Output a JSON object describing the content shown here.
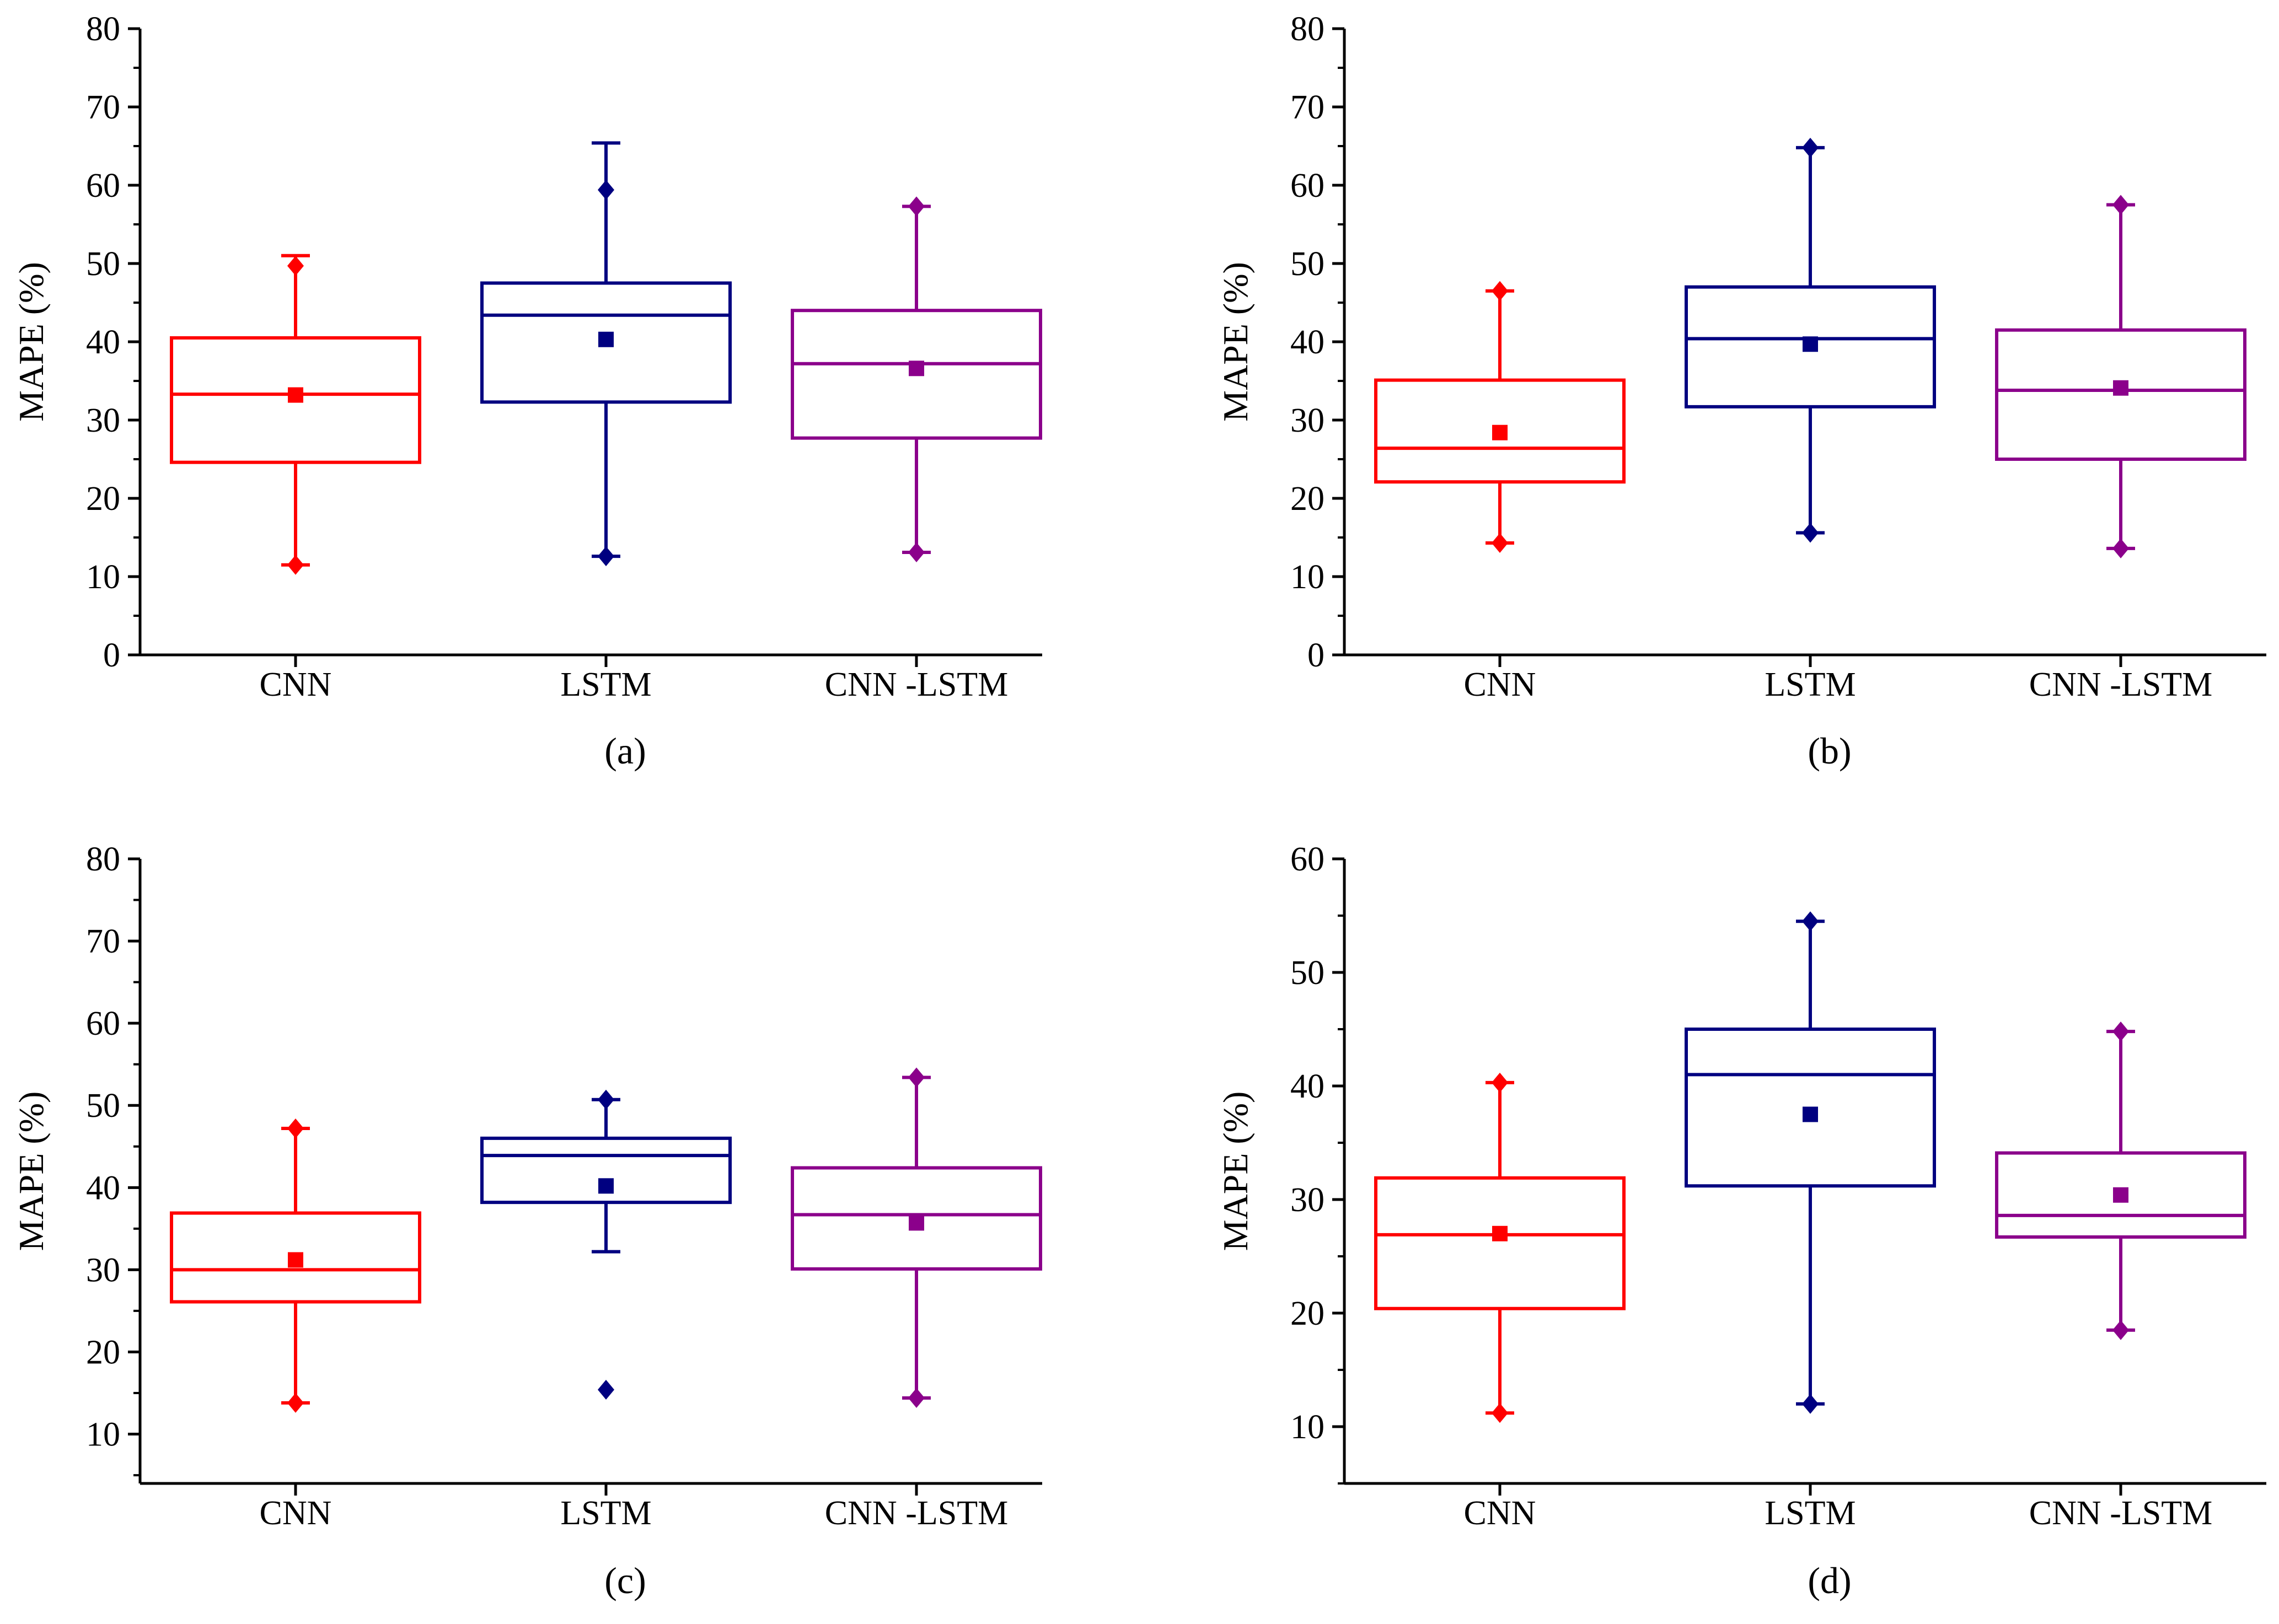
{
  "colors": {
    "CNN": "#ff0000",
    "LSTM": "#000080",
    "CNN -LSTM": "#8b008b",
    "axis": "#000000"
  },
  "chart_data": [
    {
      "type": "box",
      "caption": "(a)",
      "ylabel": "MAPE (%)",
      "ylim": [
        0,
        80
      ],
      "yticks": [
        "0",
        "10",
        "20",
        "30",
        "40",
        "50",
        "60",
        "70",
        "80"
      ],
      "categories": [
        "CNN",
        "LSTM",
        "CNN -LSTM"
      ],
      "series": [
        {
          "name": "CNN",
          "whisker_low": 11.5,
          "q1": 24.6,
          "median": 33.3,
          "q3": 40.5,
          "whisker_high": 51.0,
          "mean": 33.2,
          "outliers": [
            11.5,
            49.7
          ]
        },
        {
          "name": "LSTM",
          "whisker_low": 12.6,
          "q1": 32.3,
          "median": 43.4,
          "q3": 47.5,
          "whisker_high": 65.4,
          "mean": 40.3,
          "outliers": [
            12.6,
            59.4
          ]
        },
        {
          "name": "CNN -LSTM",
          "whisker_low": 13.1,
          "q1": 27.7,
          "median": 37.2,
          "q3": 44.0,
          "whisker_high": 57.3,
          "mean": 36.6,
          "outliers": [
            13.1,
            57.3
          ]
        }
      ]
    },
    {
      "type": "box",
      "caption": "(b)",
      "ylabel": "MAPE (%)",
      "ylim": [
        0,
        80
      ],
      "yticks": [
        "0",
        "10",
        "20",
        "30",
        "40",
        "50",
        "60",
        "70",
        "80"
      ],
      "categories": [
        "CNN",
        "LSTM",
        "CNN -LSTM"
      ],
      "series": [
        {
          "name": "CNN",
          "whisker_low": 14.3,
          "q1": 22.1,
          "median": 26.4,
          "q3": 35.1,
          "whisker_high": 46.5,
          "mean": 28.4,
          "outliers": [
            14.3,
            46.5
          ]
        },
        {
          "name": "LSTM",
          "whisker_low": 15.6,
          "q1": 31.7,
          "median": 40.4,
          "q3": 47.0,
          "whisker_high": 64.8,
          "mean": 39.7,
          "outliers": [
            15.6,
            64.8
          ]
        },
        {
          "name": "CNN -LSTM",
          "whisker_low": 13.6,
          "q1": 25.0,
          "median": 33.8,
          "q3": 41.5,
          "whisker_high": 57.5,
          "mean": 34.1,
          "outliers": [
            13.6,
            57.5
          ]
        }
      ]
    },
    {
      "type": "box",
      "caption": "(c)",
      "ylabel": "MAPE (%)",
      "ylim": [
        4,
        80
      ],
      "yticks": [
        "10",
        "20",
        "30",
        "40",
        "50",
        "60",
        "70",
        "80"
      ],
      "categories": [
        "CNN",
        "LSTM",
        "CNN -LSTM"
      ],
      "series": [
        {
          "name": "CNN",
          "whisker_low": 13.8,
          "q1": 26.1,
          "median": 30.0,
          "q3": 36.9,
          "whisker_high": 47.2,
          "mean": 31.2,
          "outliers": [
            13.8,
            47.2
          ]
        },
        {
          "name": "LSTM",
          "whisker_low": 32.2,
          "q1": 38.2,
          "median": 43.9,
          "q3": 46.0,
          "whisker_high": 50.7,
          "mean": 40.2,
          "outliers": [
            15.4,
            50.7
          ]
        },
        {
          "name": "CNN -LSTM",
          "whisker_low": 14.4,
          "q1": 30.1,
          "median": 36.7,
          "q3": 42.4,
          "whisker_high": 53.4,
          "mean": 35.7,
          "outliers": [
            14.4,
            53.4
          ]
        }
      ]
    },
    {
      "type": "box",
      "caption": "(d)",
      "ylabel": "MAPE (%)",
      "ylim": [
        5,
        60
      ],
      "yticks": [
        "10",
        "20",
        "30",
        "40",
        "50",
        "60"
      ],
      "categories": [
        "CNN",
        "LSTM",
        "CNN -LSTM"
      ],
      "series": [
        {
          "name": "CNN",
          "whisker_low": 11.2,
          "q1": 20.4,
          "median": 26.9,
          "q3": 31.9,
          "whisker_high": 40.3,
          "mean": 27.0,
          "outliers": [
            11.2,
            40.3
          ]
        },
        {
          "name": "LSTM",
          "whisker_low": 12.0,
          "q1": 31.2,
          "median": 41.0,
          "q3": 45.0,
          "whisker_high": 54.5,
          "mean": 37.5,
          "outliers": [
            12.0,
            54.5
          ]
        },
        {
          "name": "CNN -LSTM",
          "whisker_low": 18.5,
          "q1": 26.7,
          "median": 28.6,
          "q3": 34.1,
          "whisker_high": 44.8,
          "mean": 30.4,
          "outliers": [
            18.5,
            44.8
          ]
        }
      ]
    }
  ]
}
